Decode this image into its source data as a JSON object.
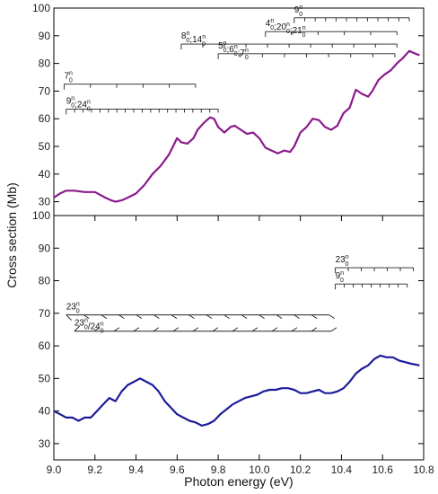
{
  "chart_data": {
    "type": "line",
    "xlabel": "Photon energy (eV)",
    "ylabel": "Cross section (Mb)",
    "xlim": [
      9.0,
      10.8
    ],
    "x_ticks": [
      "9.0",
      "9.2",
      "9.4",
      "9.6",
      "9.8",
      "10.0",
      "10.2",
      "10.4",
      "10.6",
      "10.8"
    ],
    "grid": false,
    "panels": [
      {
        "position": "top",
        "ylim": [
          25,
          100
        ],
        "y_ticks": [
          "30",
          "40",
          "50",
          "60",
          "70",
          "80",
          "90",
          "100"
        ],
        "series": [
          {
            "color": "#8B1A8B",
            "x": [
              9.0,
              9.03,
              9.06,
              9.1,
              9.15,
              9.2,
              9.25,
              9.28,
              9.3,
              9.33,
              9.36,
              9.4,
              9.44,
              9.48,
              9.52,
              9.56,
              9.6,
              9.62,
              9.65,
              9.68,
              9.7,
              9.73,
              9.76,
              9.78,
              9.8,
              9.83,
              9.86,
              9.88,
              9.91,
              9.94,
              9.97,
              10.0,
              10.03,
              10.06,
              10.09,
              10.12,
              10.15,
              10.17,
              10.2,
              10.23,
              10.26,
              10.29,
              10.32,
              10.35,
              10.38,
              10.41,
              10.44,
              10.47,
              10.5,
              10.53,
              10.55,
              10.58,
              10.61,
              10.64,
              10.67,
              10.7,
              10.73,
              10.76,
              10.78
            ],
            "y": [
              31.5,
              33,
              34,
              34,
              33.5,
              33.5,
              31.5,
              30.5,
              30,
              30.5,
              31.5,
              33,
              36,
              40,
              43,
              47,
              53,
              51.5,
              51,
              53,
              56,
              58.5,
              60.5,
              60,
              57,
              55,
              57,
              57.5,
              56,
              54.5,
              55,
              53,
              49.5,
              48.5,
              47.5,
              48.5,
              48,
              50,
              55,
              57,
              60,
              59.5,
              57,
              56,
              57.5,
              62,
              64,
              70.5,
              69,
              68,
              70,
              74,
              76,
              77.5,
              80,
              82,
              84.5,
              83.5,
              83
            ]
          }
        ],
        "progressions": [
          {
            "label": "9",
            "sup": "n",
            "sub": "0",
            "line_y": 96.5,
            "x_start": 10.17,
            "x_end": 10.73,
            "n_ticks": 12,
            "tick_dir": "down"
          },
          {
            "label": "4;20;21",
            "sup": "n",
            "sub": "0",
            "line_y": 91.5,
            "x_start": 10.03,
            "x_end": 10.67,
            "n_ticks": 6,
            "tick_dir": "down"
          },
          {
            "label": "8;14",
            "sup": "n",
            "sub": "0",
            "line_y": 87,
            "x_start": 9.62,
            "x_end": 10.67,
            "n_ticks": 11,
            "tick_dir": "down"
          },
          {
            "label": "5;6;7",
            "sup": "n",
            "sub": "0",
            "line_y": 83.5,
            "x_start": 9.8,
            "x_end": 10.66,
            "n_ticks": 9,
            "tick_dir": "down"
          },
          {
            "label": "7",
            "sup": "n",
            "sub": "0",
            "line_y": 72.5,
            "x_start": 9.05,
            "x_end": 9.69,
            "n_ticks": 6,
            "tick_dir": "down"
          },
          {
            "label": "9;24",
            "sup": "n",
            "sub": "0",
            "line_y": 63.5,
            "x_start": 9.06,
            "x_end": 9.8,
            "n_ticks": 19,
            "tick_dir": "down"
          }
        ]
      },
      {
        "position": "bottom",
        "ylim": [
          25,
          100
        ],
        "y_ticks": [
          "30",
          "40",
          "50",
          "60",
          "70",
          "80",
          "90",
          "100"
        ],
        "series": [
          {
            "color": "#1C1C9A",
            "x": [
              9.0,
              9.03,
              9.06,
              9.09,
              9.12,
              9.15,
              9.18,
              9.21,
              9.24,
              9.27,
              9.3,
              9.33,
              9.36,
              9.39,
              9.42,
              9.45,
              9.48,
              9.51,
              9.54,
              9.57,
              9.6,
              9.63,
              9.66,
              9.69,
              9.72,
              9.75,
              9.78,
              9.81,
              9.84,
              9.87,
              9.9,
              9.93,
              9.96,
              9.99,
              10.02,
              10.05,
              10.08,
              10.11,
              10.14,
              10.17,
              10.2,
              10.23,
              10.26,
              10.29,
              10.32,
              10.35,
              10.38,
              10.41,
              10.44,
              10.47,
              10.5,
              10.53,
              10.56,
              10.59,
              10.62,
              10.65,
              10.68,
              10.71,
              10.74,
              10.78
            ],
            "y": [
              40,
              39,
              38,
              38,
              37,
              38,
              38,
              40,
              42,
              44,
              43,
              46,
              48,
              49,
              50,
              49,
              48,
              46,
              43,
              41,
              39,
              38,
              37,
              36.5,
              35.5,
              36,
              37,
              39,
              40.5,
              42,
              43,
              44,
              44.5,
              45,
              46,
              46.5,
              46.5,
              47,
              47,
              46.5,
              45.5,
              45.5,
              46,
              46.5,
              45.5,
              45.5,
              46,
              47,
              49,
              51.5,
              53,
              54,
              56,
              57,
              56.5,
              56.5,
              55.5,
              55,
              54.5,
              54
            ]
          }
        ],
        "progressions": [
          {
            "label": "23",
            "sup": "n",
            "sub": "0",
            "line_y": 84,
            "x_start": 10.37,
            "x_end": 10.75,
            "n_ticks": 7,
            "tick_dir": "down"
          },
          {
            "label": "9",
            "sup": "n",
            "sub": "0",
            "line_y": 79,
            "x_start": 10.37,
            "x_end": 10.72,
            "n_ticks": 9,
            "tick_dir": "down"
          },
          {
            "label": "23",
            "sup": "n",
            "sub": "0",
            "line_y": 69.5,
            "x_start": 9.06,
            "x_end": 10.34,
            "n_ticks": 16,
            "tick_dir": "down",
            "slanted": true
          },
          {
            "label": "23/24",
            "sup": "n",
            "sub": "0",
            "line_y": 64.5,
            "x_start": 9.1,
            "x_end": 10.35,
            "n_ticks": 14,
            "tick_dir": "up",
            "slanted": true
          }
        ]
      }
    ]
  }
}
